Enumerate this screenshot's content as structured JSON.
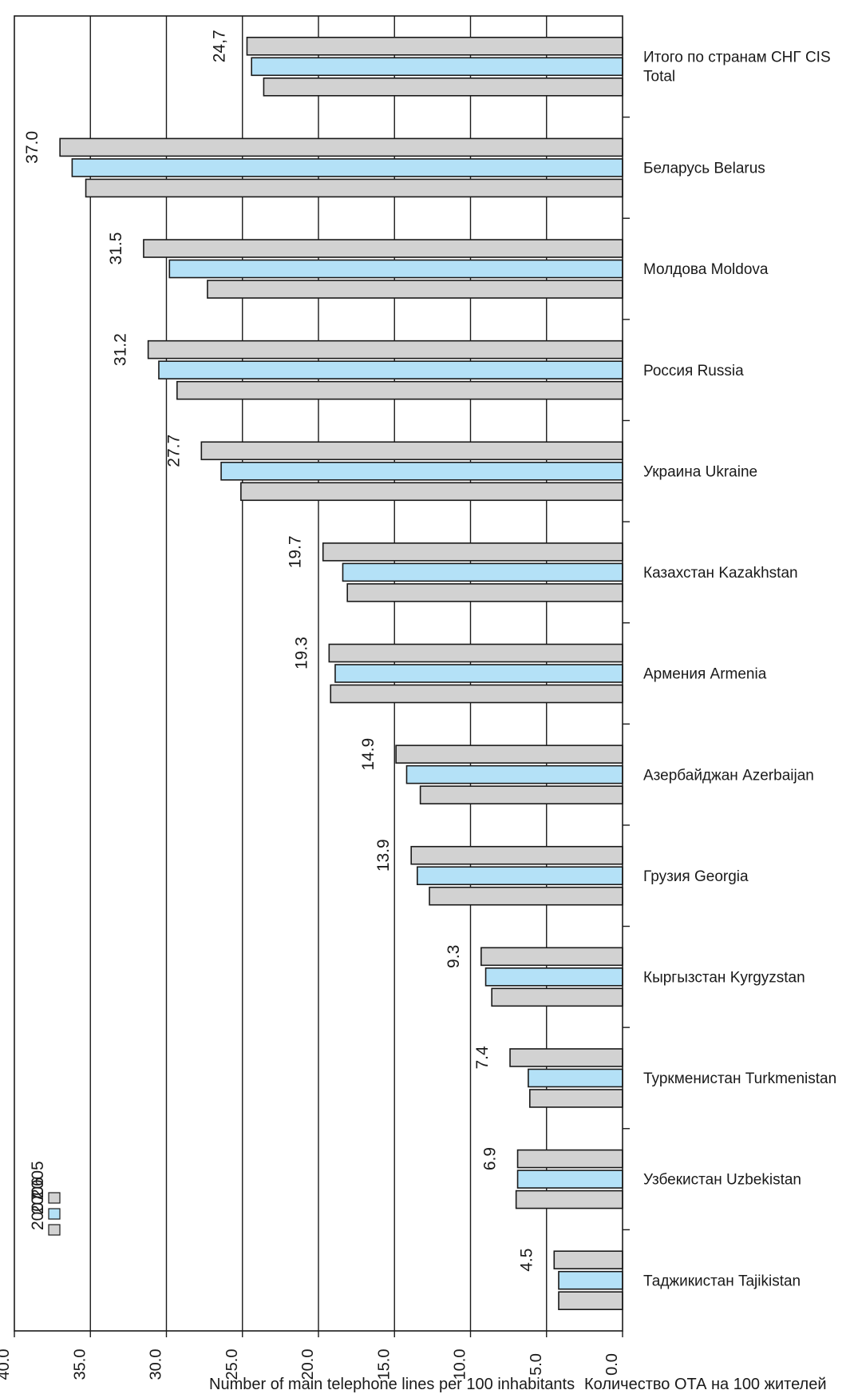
{
  "chart_data": {
    "type": "bar",
    "orientation": "horizontal",
    "rotated": "180deg",
    "ylabel_ru": "Количество ОТА на 100 жителей",
    "ylabel_en": "Number of main telephone lines per 100 inhabitants",
    "ylim": [
      0,
      40
    ],
    "ticks": [
      "0.0",
      "5.0",
      "10.0",
      "15.0",
      "20.0",
      "25.0",
      "30.0",
      "35.0",
      "40.0"
    ],
    "grid": true,
    "legend_position": "top-right",
    "categories": [
      {
        "line1": "Таджикистан Tajikistan",
        "line2": ""
      },
      {
        "line1": "Узбекистан Uzbekistan",
        "line2": ""
      },
      {
        "line1": "Туркменистан Turkmenistan",
        "line2": ""
      },
      {
        "line1": "Кыргызстан Kyrgyzstan",
        "line2": ""
      },
      {
        "line1": "Грузия Georgia",
        "line2": ""
      },
      {
        "line1": "Азербайджан  Azerbaijan",
        "line2": ""
      },
      {
        "line1": "Армения Armenia",
        "line2": ""
      },
      {
        "line1": "Казахстан Kazakhstan",
        "line2": ""
      },
      {
        "line1": "Украина Ukraine",
        "line2": ""
      },
      {
        "line1": "Россия Russia",
        "line2": ""
      },
      {
        "line1": "Молдова Moldova",
        "line2": ""
      },
      {
        "line1": "Беларусь Belarus",
        "line2": ""
      },
      {
        "line1": "Итого по странам СНГ CIS",
        "line2": "Total"
      }
    ],
    "series": [
      {
        "name": "2005",
        "color": "#d2d2d2",
        "values": [
          4.2,
          7.0,
          6.1,
          8.6,
          12.7,
          13.3,
          19.2,
          18.1,
          25.1,
          29.3,
          27.3,
          35.3,
          23.6
        ]
      },
      {
        "name": "2006",
        "color": "#b4e1f7",
        "values": [
          4.2,
          6.9,
          6.2,
          9.0,
          13.5,
          14.2,
          18.9,
          18.4,
          26.4,
          30.5,
          29.8,
          36.2,
          24.4
        ]
      },
      {
        "name": "2007",
        "color": "#d2d2d2",
        "values": [
          4.5,
          6.9,
          7.4,
          9.3,
          13.9,
          14.9,
          19.3,
          19.7,
          27.7,
          31.2,
          31.5,
          37.0,
          24.7
        ]
      }
    ],
    "value_labels": [
      "4.5",
      "6.9",
      "7.4",
      "9.3",
      "13.9",
      "14.9",
      "19.3",
      "19.7",
      "27.7",
      "31.2",
      "31.5",
      "37.0",
      "24,7"
    ]
  }
}
